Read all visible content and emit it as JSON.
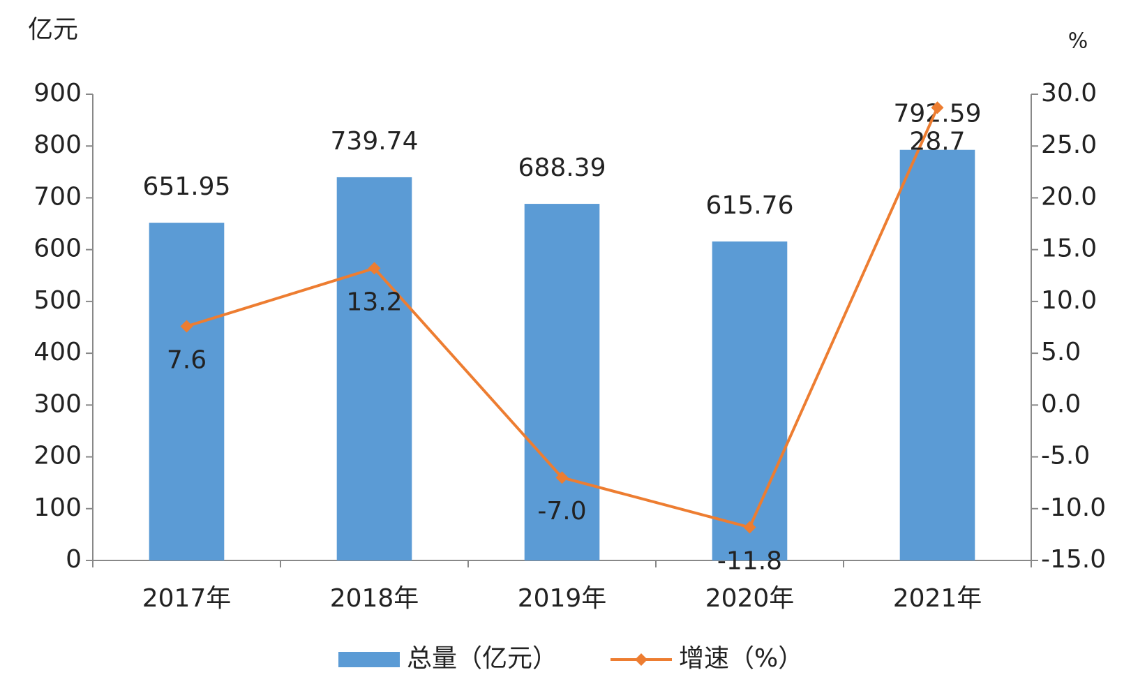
{
  "chart_data": {
    "type": "bar-line",
    "y_label": "亿元",
    "y2_label": "%",
    "categories": [
      "2017年",
      "2018年",
      "2019年",
      "2020年",
      "2021年"
    ],
    "series": [
      {
        "name": "总量（亿元）",
        "type": "bar",
        "color": "#5b9bd5",
        "values": [
          651.95,
          739.74,
          688.39,
          615.76,
          792.59
        ]
      },
      {
        "name": "增速（%）",
        "type": "line",
        "axis": "y2",
        "color": "#ed7d31",
        "values": [
          7.6,
          13.2,
          -7.0,
          -11.8,
          28.7
        ],
        "value_labels": [
          "7.6",
          "13.2",
          "-7.0",
          "-11.8",
          "28.7"
        ]
      }
    ],
    "ylim": [
      0,
      900
    ],
    "yticks": [
      0,
      100,
      200,
      300,
      400,
      500,
      600,
      700,
      800,
      900
    ],
    "y2lim": [
      -15,
      30
    ],
    "y2ticks": [
      {
        "value": -15,
        "label": "-15.0"
      },
      {
        "value": -10,
        "label": "-10.0"
      },
      {
        "value": -5,
        "label": "-5.0"
      },
      {
        "value": 0,
        "label": "0.0"
      },
      {
        "value": 5,
        "label": "5.0"
      },
      {
        "value": 10,
        "label": "10.0"
      },
      {
        "value": 15,
        "label": "15.0"
      },
      {
        "value": 20,
        "label": "20.0"
      },
      {
        "value": 25,
        "label": "25.0"
      },
      {
        "value": 30,
        "label": "30.0"
      }
    ],
    "legend": "bottom"
  }
}
